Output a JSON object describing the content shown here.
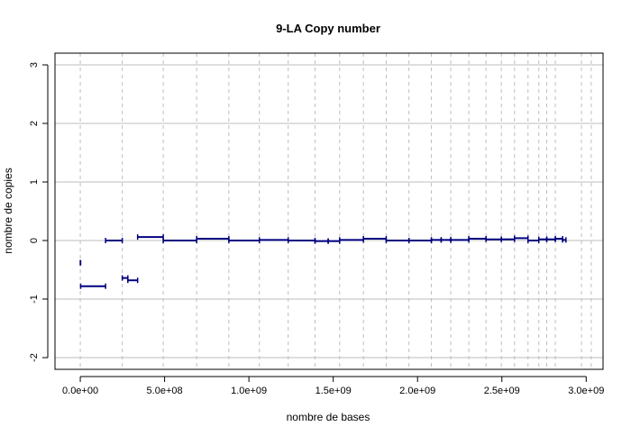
{
  "chart_data": {
    "type": "segment",
    "title": "9-LA Copy number",
    "xlabel": "nombre de bases",
    "ylabel": "nombre de copies",
    "xlim": [
      -150000000.0,
      3100000000.0
    ],
    "ylim": [
      -2.2,
      3.2
    ],
    "x_ticks": [
      0,
      500000000,
      1000000000,
      1500000000,
      2000000000,
      2500000000,
      3000000000
    ],
    "x_tick_labels": [
      "0.0e+00",
      "5.0e+08",
      "1.0e+09",
      "1.5e+09",
      "2.0e+09",
      "2.5e+09",
      "3.0e+09"
    ],
    "y_ticks": [
      -2,
      -1,
      0,
      1,
      2,
      3
    ],
    "y_tick_labels": [
      "-2",
      "-1",
      "0",
      "1",
      "2",
      "3"
    ],
    "chromosome_boundaries": [
      0,
      249000000,
      492000000,
      690000000,
      881000000,
      1062000000,
      1233000000,
      1392000000,
      1538000000,
      1679000000,
      1814000000,
      1949000000,
      2082000000,
      2197000000,
      2304000000,
      2406000000,
      2497000000,
      2575000000,
      2655000000,
      2719000000,
      2766000000,
      2817000000,
      2972000000,
      3030000000
    ],
    "grid": true,
    "segment_color": "#000080",
    "grid_color": "#bebebe",
    "segments": [
      {
        "x0": 0,
        "x1": 2000000,
        "y": -0.38
      },
      {
        "x0": 2000000,
        "x1": 150000000,
        "y": -0.78
      },
      {
        "x0": 150000000,
        "x1": 249000000,
        "y": 0.0
      },
      {
        "x0": 249000000,
        "x1": 282000000,
        "y": -0.64
      },
      {
        "x0": 282000000,
        "x1": 340000000,
        "y": -0.68
      },
      {
        "x0": 340000000,
        "x1": 492000000,
        "y": 0.06
      },
      {
        "x0": 492000000,
        "x1": 690000000,
        "y": 0.0
      },
      {
        "x0": 690000000,
        "x1": 881000000,
        "y": 0.03
      },
      {
        "x0": 881000000,
        "x1": 1062000000,
        "y": 0.0
      },
      {
        "x0": 1062000000,
        "x1": 1233000000,
        "y": 0.01
      },
      {
        "x0": 1233000000,
        "x1": 1392000000,
        "y": 0.0
      },
      {
        "x0": 1392000000,
        "x1": 1470000000,
        "y": -0.01
      },
      {
        "x0": 1470000000,
        "x1": 1538000000,
        "y": -0.01
      },
      {
        "x0": 1538000000,
        "x1": 1679000000,
        "y": 0.01
      },
      {
        "x0": 1679000000,
        "x1": 1814000000,
        "y": 0.03
      },
      {
        "x0": 1814000000,
        "x1": 1949000000,
        "y": 0.0
      },
      {
        "x0": 1949000000,
        "x1": 2082000000,
        "y": 0.0
      },
      {
        "x0": 2082000000,
        "x1": 2140000000,
        "y": 0.01
      },
      {
        "x0": 2140000000,
        "x1": 2197000000,
        "y": 0.01
      },
      {
        "x0": 2197000000,
        "x1": 2304000000,
        "y": 0.01
      },
      {
        "x0": 2304000000,
        "x1": 2406000000,
        "y": 0.03
      },
      {
        "x0": 2406000000,
        "x1": 2497000000,
        "y": 0.02
      },
      {
        "x0": 2497000000,
        "x1": 2575000000,
        "y": 0.02
      },
      {
        "x0": 2575000000,
        "x1": 2655000000,
        "y": 0.04
      },
      {
        "x0": 2655000000,
        "x1": 2719000000,
        "y": 0.0
      },
      {
        "x0": 2719000000,
        "x1": 2766000000,
        "y": 0.02
      },
      {
        "x0": 2766000000,
        "x1": 2817000000,
        "y": 0.02
      },
      {
        "x0": 2817000000,
        "x1": 2860000000,
        "y": 0.03
      },
      {
        "x0": 2860000000,
        "x1": 2880000000,
        "y": 0.01
      }
    ]
  }
}
